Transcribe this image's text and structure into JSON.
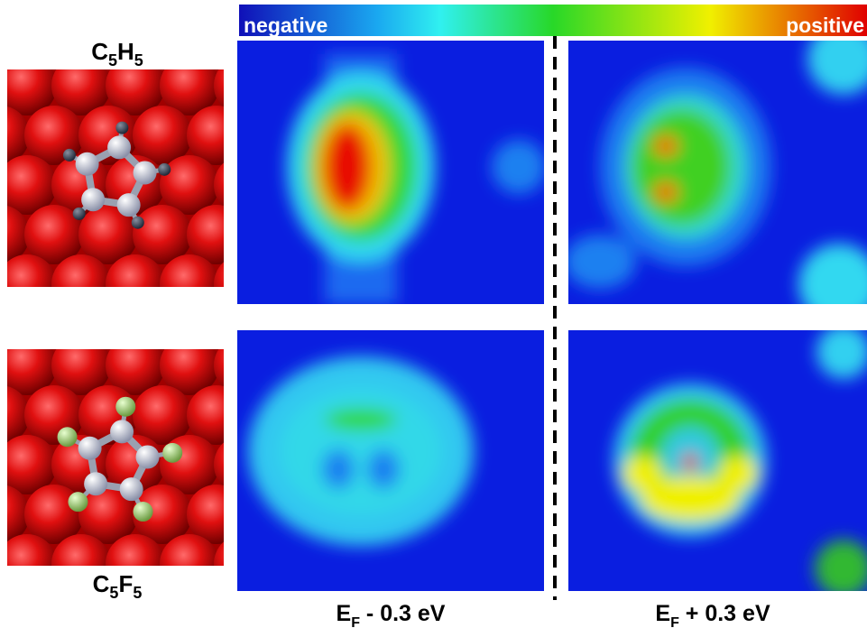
{
  "colorbar": {
    "low_label": "negative",
    "high_label": "positive"
  },
  "molecules": [
    {
      "parts": [
        {
          "text": "C",
          "sub": "5"
        },
        {
          "text": "H",
          "sub": "5"
        }
      ]
    },
    {
      "parts": [
        {
          "text": "C",
          "sub": "5"
        },
        {
          "text": "F",
          "sub": "5"
        }
      ]
    }
  ],
  "energies": [
    {
      "symbol": "E",
      "sub": "F",
      "rest": " - 0.3 eV"
    },
    {
      "symbol": "E",
      "sub": "F",
      "rest": " + 0.3 eV"
    }
  ]
}
